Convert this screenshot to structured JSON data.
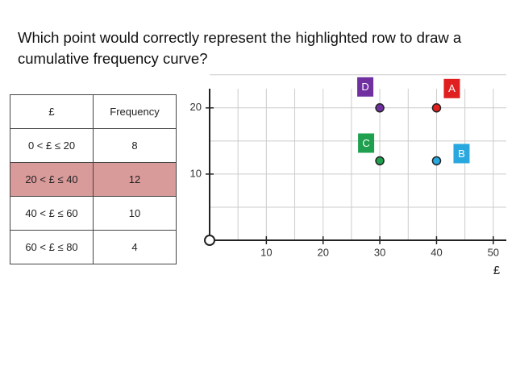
{
  "question": "Which point would correctly represent the highlighted row to draw a cumulative frequency curve?",
  "table": {
    "header": [
      "£",
      "Frequency"
    ],
    "rows": [
      [
        "0 < £ ≤ 20",
        "8"
      ],
      [
        "20 < £ ≤ 40",
        "12"
      ],
      [
        "40 < £ ≤ 60",
        "10"
      ],
      [
        "60 < £ ≤ 80",
        "4"
      ]
    ],
    "highlighted_row": 1,
    "highlight_color": "#d99a9a"
  },
  "chart_data": {
    "type": "scatter",
    "x_label": "£",
    "xlim": [
      0,
      52.3
    ],
    "ylim": [
      0,
      22.9
    ],
    "xticks": [
      10,
      20,
      30,
      40,
      50
    ],
    "yticks": [
      10,
      20
    ],
    "grid": true,
    "points": [
      {
        "label": "A",
        "x": 40,
        "y": 20,
        "color": "#e02020"
      },
      {
        "label": "B",
        "x": 40,
        "y": 12,
        "color": "#29a8e0"
      },
      {
        "label": "C",
        "x": 30,
        "y": 12,
        "color": "#1fa04e"
      },
      {
        "label": "D",
        "x": 30,
        "y": 20,
        "color": "#7030a0"
      }
    ]
  }
}
